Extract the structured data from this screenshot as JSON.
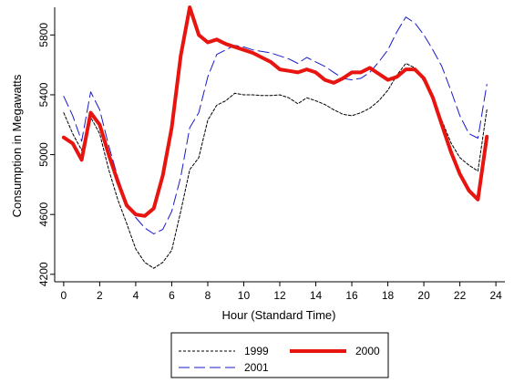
{
  "chart_data": {
    "type": "line",
    "xlabel": "Hour (Standard Time)",
    "ylabel": "Consumption in Megawatts",
    "xlim": [
      -0.5,
      24.5
    ],
    "ylim": [
      4150,
      5985
    ],
    "xticks": [
      0,
      2,
      4,
      6,
      8,
      10,
      12,
      14,
      16,
      18,
      20,
      22,
      24
    ],
    "yticks": [
      4200,
      4600,
      5000,
      5400,
      5800
    ],
    "grid": false,
    "legend_position": "bottom",
    "x": [
      0,
      0.5,
      1,
      1.5,
      2,
      2.5,
      3,
      3.5,
      4,
      4.5,
      5,
      5.5,
      6,
      6.5,
      7,
      7.5,
      8,
      8.5,
      9,
      9.5,
      10,
      10.5,
      11,
      11.5,
      12,
      12.5,
      13,
      13.5,
      14,
      14.5,
      15,
      15.5,
      16,
      16.5,
      17,
      17.5,
      18,
      18.5,
      19,
      19.5,
      20,
      20.5,
      21,
      21.5,
      22,
      22.5,
      23,
      23.5
    ],
    "series": [
      {
        "name": "1999",
        "color": "#000000",
        "style": "dotted",
        "values": [
          5280,
          5140,
          5030,
          5250,
          5140,
          4900,
          4700,
          4540,
          4370,
          4280,
          4240,
          4280,
          4360,
          4620,
          4900,
          4980,
          5230,
          5330,
          5360,
          5410,
          5400,
          5400,
          5395,
          5395,
          5400,
          5380,
          5340,
          5380,
          5360,
          5335,
          5300,
          5270,
          5260,
          5280,
          5310,
          5360,
          5430,
          5530,
          5610,
          5580,
          5490,
          5380,
          5230,
          5080,
          4980,
          4930,
          4890,
          5300
        ]
      },
      {
        "name": "2000",
        "color": "#e8140f",
        "style": "solid",
        "values": [
          5115,
          5075,
          4965,
          5280,
          5200,
          5000,
          4820,
          4660,
          4600,
          4590,
          4640,
          4860,
          5180,
          5660,
          5985,
          5800,
          5750,
          5770,
          5740,
          5720,
          5700,
          5680,
          5650,
          5620,
          5570,
          5560,
          5550,
          5570,
          5550,
          5500,
          5480,
          5510,
          5550,
          5550,
          5580,
          5540,
          5500,
          5520,
          5570,
          5570,
          5510,
          5380,
          5200,
          5020,
          4870,
          4760,
          4700,
          5120
        ]
      },
      {
        "name": "2001",
        "color": "#1a1acc",
        "style": "dashed",
        "values": [
          5390,
          5260,
          5090,
          5420,
          5300,
          5060,
          4850,
          4680,
          4580,
          4510,
          4470,
          4500,
          4620,
          4850,
          5180,
          5280,
          5520,
          5670,
          5700,
          5730,
          5720,
          5700,
          5690,
          5680,
          5660,
          5640,
          5610,
          5650,
          5620,
          5590,
          5550,
          5510,
          5500,
          5510,
          5550,
          5620,
          5700,
          5820,
          5920,
          5880,
          5800,
          5700,
          5590,
          5430,
          5260,
          5140,
          5110,
          5470
        ]
      }
    ]
  }
}
